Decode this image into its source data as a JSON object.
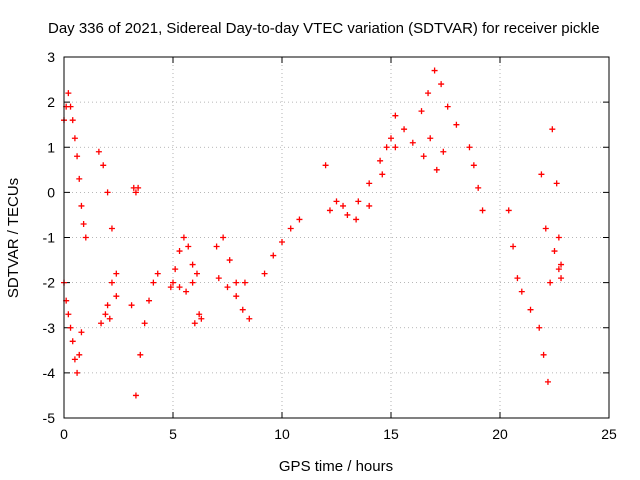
{
  "chart_data": {
    "type": "scatter",
    "title": "Day 336 of 2021, Sidereal Day-to-day VTEC variation (SDTVAR) for receiver pickle",
    "xlabel": "GPS time / hours",
    "ylabel": "SDTVAR / TECUs",
    "xlim": [
      0,
      25
    ],
    "ylim": [
      -5,
      3
    ],
    "xticks": [
      0,
      5,
      10,
      15,
      20,
      25
    ],
    "yticks": [
      -5,
      -4,
      -3,
      -2,
      -1,
      0,
      1,
      2,
      3
    ],
    "grid": true,
    "marker": "+",
    "color": "#ff0000",
    "series": [
      {
        "name": "SDTVAR segment 1",
        "x": [
          0.0,
          0.1,
          0.2,
          0.3,
          0.4,
          0.5,
          0.6,
          0.7,
          0.8,
          0.9,
          1.0
        ],
        "y": [
          1.6,
          1.9,
          2.2,
          1.9,
          1.6,
          1.2,
          0.8,
          0.3,
          -0.3,
          -0.7,
          -1.0
        ]
      },
      {
        "name": "SDTVAR segment 2",
        "x": [
          0.0,
          0.1,
          0.2,
          0.3,
          0.4,
          0.5,
          0.6,
          0.7,
          0.8
        ],
        "y": [
          -2.0,
          -2.4,
          -2.7,
          -3.0,
          -3.3,
          -3.7,
          -4.0,
          -3.6,
          -3.1
        ]
      },
      {
        "name": "SDTVAR segment 3",
        "x": [
          1.6,
          1.8,
          2.0,
          2.2,
          2.4
        ],
        "y": [
          0.9,
          0.6,
          0.0,
          -0.8,
          -1.8
        ]
      },
      {
        "name": "SDTVAR segment 4",
        "x": [
          2.0,
          2.2,
          2.4
        ],
        "y": [
          -2.5,
          -2.0,
          -2.3
        ]
      },
      {
        "name": "SDTVAR segment 5",
        "x": [
          1.7,
          1.9,
          2.1
        ],
        "y": [
          -2.9,
          -2.7,
          -2.8
        ]
      },
      {
        "name": "SDTVAR segment 6",
        "x": [
          3.1,
          3.3,
          3.5,
          3.7,
          3.9,
          4.1,
          4.3
        ],
        "y": [
          -2.5,
          -4.5,
          -3.6,
          -2.9,
          -2.4,
          -2.0,
          -1.8
        ]
      },
      {
        "name": "SDTVAR segment 7",
        "x": [
          3.2,
          3.3,
          3.4
        ],
        "y": [
          0.1,
          0.0,
          0.1
        ]
      },
      {
        "name": "SDTVAR segment 8",
        "x": [
          4.9,
          5.1,
          5.3,
          5.5,
          5.7,
          5.9,
          6.1
        ],
        "y": [
          -2.1,
          -1.7,
          -1.3,
          -1.0,
          -1.2,
          -1.6,
          -1.8
        ]
      },
      {
        "name": "SDTVAR segment 9",
        "x": [
          5.0,
          5.3,
          5.6,
          5.9
        ],
        "y": [
          -2.0,
          -2.1,
          -2.2,
          -2.0
        ]
      },
      {
        "name": "SDTVAR segment 10",
        "x": [
          6.0,
          6.2,
          6.3
        ],
        "y": [
          -2.9,
          -2.7,
          -2.8
        ]
      },
      {
        "name": "SDTVAR segment 11",
        "x": [
          7.0,
          7.3,
          7.6,
          7.9,
          8.2,
          8.5
        ],
        "y": [
          -1.2,
          -1.0,
          -1.5,
          -2.0,
          -2.6,
          -2.8
        ]
      },
      {
        "name": "SDTVAR segment 12",
        "x": [
          7.1,
          7.5,
          7.9,
          8.3
        ],
        "y": [
          -1.9,
          -2.1,
          -2.3,
          -2.0
        ]
      },
      {
        "name": "SDTVAR segment 13",
        "x": [
          9.2,
          9.6,
          10.0,
          10.4,
          10.8
        ],
        "y": [
          -1.8,
          -1.4,
          -1.1,
          -0.8,
          -0.6
        ]
      },
      {
        "name": "SDTVAR segment 14",
        "x": [
          12.0,
          12.5,
          13.0,
          13.5,
          14.0,
          14.5,
          15.0
        ],
        "y": [
          0.6,
          -0.2,
          -0.5,
          -0.2,
          0.2,
          0.7,
          1.2
        ]
      },
      {
        "name": "SDTVAR segment 15",
        "x": [
          12.2,
          12.8,
          13.4,
          14.0,
          14.6,
          15.2
        ],
        "y": [
          -0.4,
          -0.3,
          -0.6,
          -0.3,
          0.4,
          1.0
        ]
      },
      {
        "name": "SDTVAR segment 16",
        "x": [
          14.8,
          15.2,
          15.6,
          16.0
        ],
        "y": [
          1.0,
          1.7,
          1.4,
          1.1
        ]
      },
      {
        "name": "SDTVAR segment 17",
        "x": [
          16.4,
          16.7,
          17.0,
          17.3,
          17.6,
          18.0
        ],
        "y": [
          1.8,
          2.2,
          2.7,
          2.4,
          1.9,
          1.5
        ]
      },
      {
        "name": "SDTVAR segment 18",
        "x": [
          16.5,
          16.8,
          17.1,
          17.4
        ],
        "y": [
          0.8,
          1.2,
          0.5,
          0.9
        ]
      },
      {
        "name": "SDTVAR segment 19",
        "x": [
          18.6,
          18.8,
          19.0,
          19.2
        ],
        "y": [
          1.0,
          0.6,
          0.1,
          -0.4
        ]
      },
      {
        "name": "SDTVAR segment 20",
        "x": [
          20.4,
          20.6,
          20.8,
          21.0,
          21.4,
          21.8,
          22.0,
          22.2
        ],
        "y": [
          -0.4,
          -1.2,
          -1.9,
          -2.2,
          -2.6,
          -3.0,
          -3.6,
          -4.2
        ]
      },
      {
        "name": "SDTVAR segment 21",
        "x": [
          21.9,
          22.1,
          22.3,
          22.5,
          22.7,
          22.8
        ],
        "y": [
          0.4,
          -0.8,
          -2.0,
          -1.3,
          -1.7,
          -1.9
        ]
      },
      {
        "name": "SDTVAR segment 22",
        "x": [
          22.4,
          22.6,
          22.7,
          22.8
        ],
        "y": [
          1.4,
          0.2,
          -1.0,
          -1.6
        ]
      }
    ]
  }
}
